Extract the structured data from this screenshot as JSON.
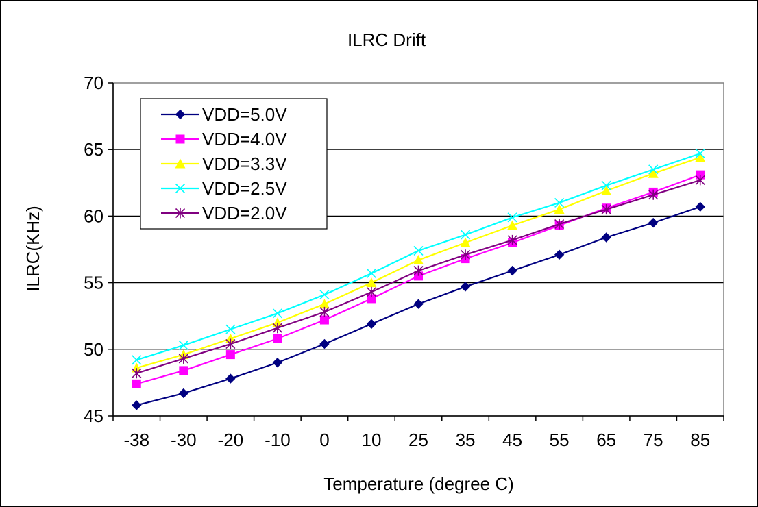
{
  "chart_data": {
    "type": "line",
    "title": "ILRC Drift",
    "xlabel": "Temperature (degree C)",
    "ylabel": "ILRC(KHz)",
    "categories": [
      "-38",
      "-30",
      "-20",
      "-10",
      "0",
      "10",
      "25",
      "35",
      "45",
      "55",
      "65",
      "75",
      "85"
    ],
    "ylim": [
      45,
      70
    ],
    "yticks": [
      45,
      50,
      55,
      60,
      65,
      70
    ],
    "grid": "horizontal",
    "legend_position": "top-left",
    "series": [
      {
        "name": "VDD=5.0V",
        "color": "#000080",
        "marker": "diamond",
        "values": [
          45.8,
          46.7,
          47.8,
          49.0,
          50.4,
          51.9,
          53.4,
          54.7,
          55.9,
          57.1,
          58.4,
          59.5,
          60.7
        ]
      },
      {
        "name": "VDD=4.0V",
        "color": "#FF00FF",
        "marker": "square",
        "values": [
          47.4,
          48.4,
          49.6,
          50.8,
          52.2,
          53.8,
          55.5,
          56.8,
          58.0,
          59.3,
          60.6,
          61.8,
          63.1
        ]
      },
      {
        "name": "VDD=3.3V",
        "color": "#FFFF00",
        "marker": "triangle",
        "values": [
          48.6,
          49.6,
          50.8,
          52.0,
          53.4,
          55.0,
          56.7,
          58.0,
          59.3,
          60.5,
          61.9,
          63.2,
          64.4
        ]
      },
      {
        "name": "VDD=2.5V",
        "color": "#00FFFF",
        "marker": "x",
        "values": [
          49.2,
          50.3,
          51.5,
          52.7,
          54.1,
          55.7,
          57.4,
          58.6,
          59.9,
          61.0,
          62.3,
          63.5,
          64.7
        ]
      },
      {
        "name": "VDD=2.0V",
        "color": "#800080",
        "marker": "star",
        "values": [
          48.2,
          49.3,
          50.4,
          51.6,
          52.8,
          54.3,
          55.9,
          57.1,
          58.2,
          59.4,
          60.5,
          61.6,
          62.7
        ]
      }
    ]
  }
}
